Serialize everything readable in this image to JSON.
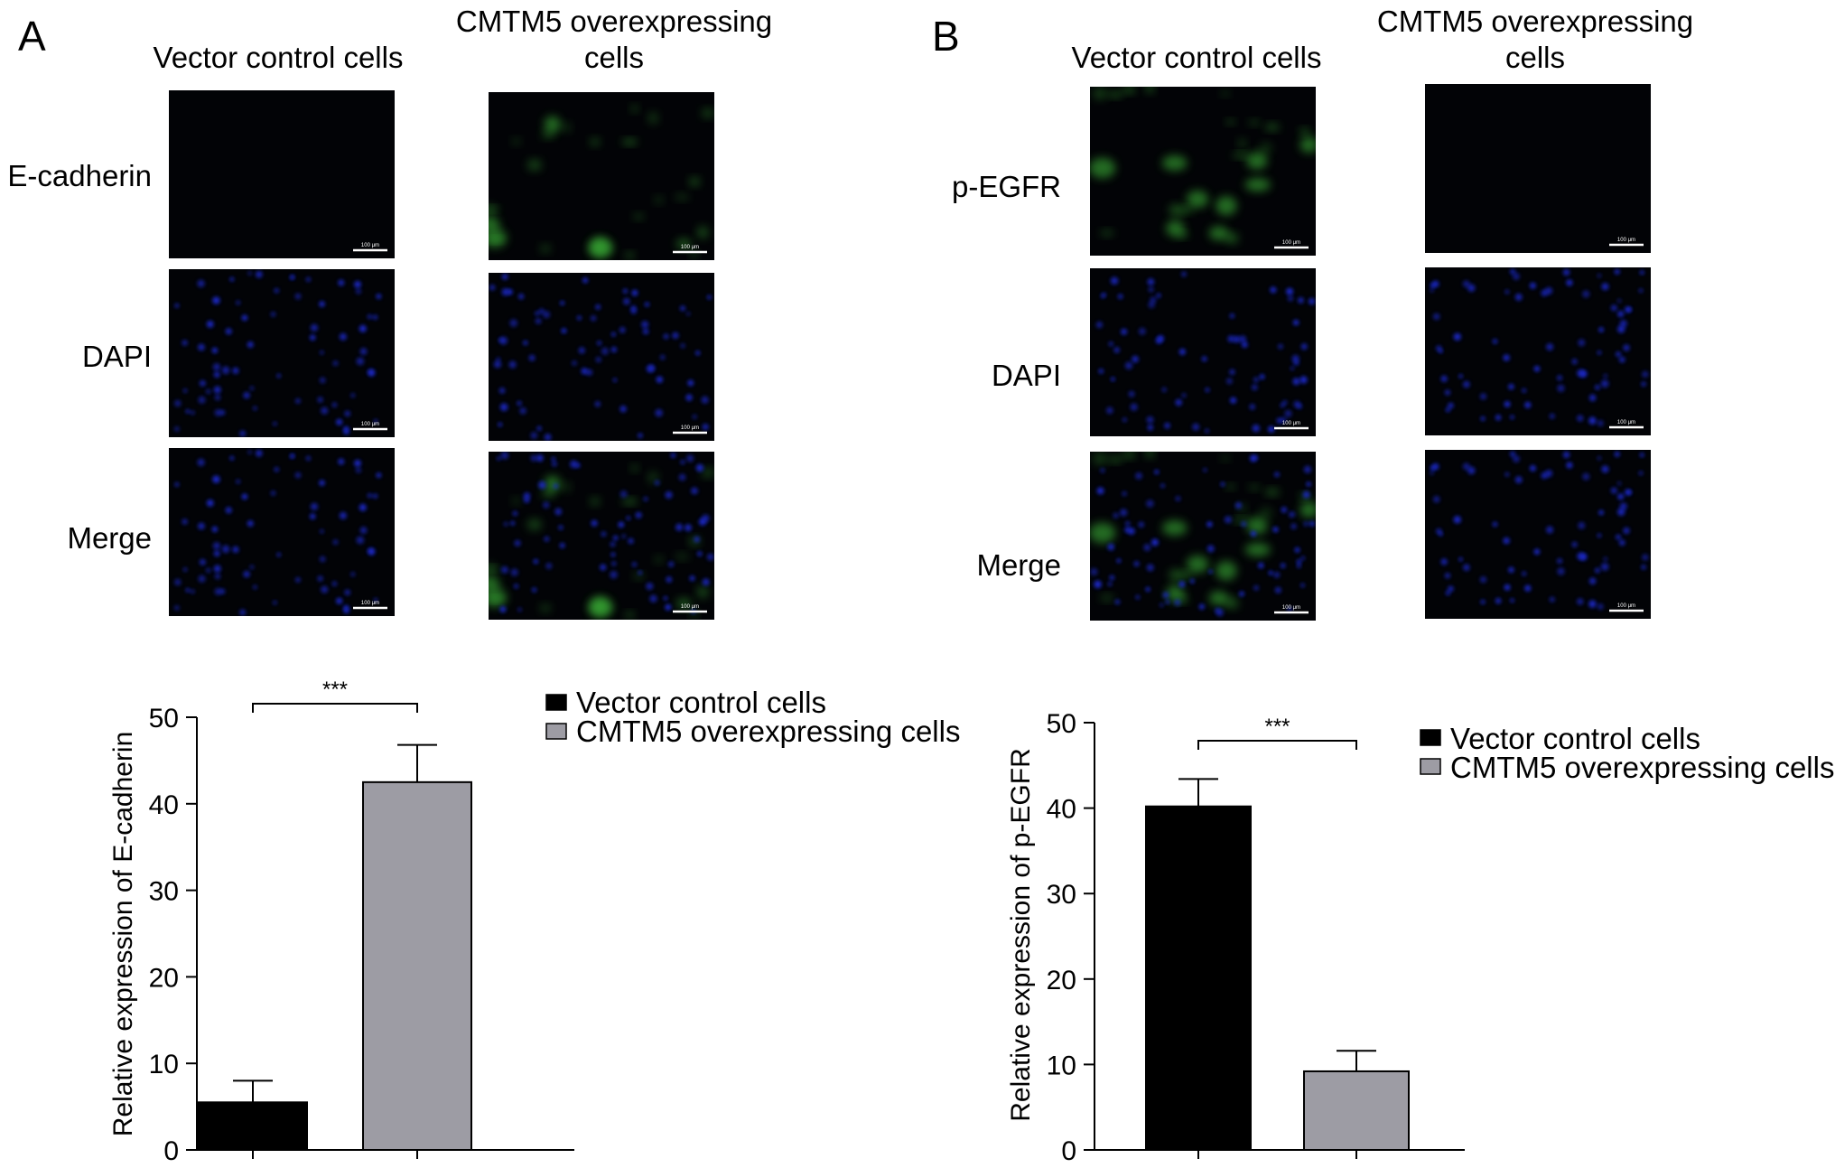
{
  "panels": [
    {
      "letter": "A",
      "column_titles": [
        [
          "Vector control cells"
        ],
        [
          "CMTM5 overexpressing",
          "cells"
        ]
      ],
      "row_labels": [
        "E-cadherin",
        "DAPI",
        "Merge"
      ],
      "scale_bar_text": "100 μm"
    },
    {
      "letter": "B",
      "column_titles": [
        [
          "Vector control cells"
        ],
        [
          "CMTM5 overexpressing",
          "cells"
        ]
      ],
      "row_labels": [
        "p-EGFR",
        "DAPI",
        "Merge"
      ],
      "scale_bar_text": "100 μm"
    }
  ],
  "colors": {
    "vector": "#000000",
    "cmtm5": "#9d9ca4",
    "dapi": "#1c2bd0",
    "signal": "#3fbf3a",
    "panel_bg": "#020306"
  },
  "chart_data": [
    {
      "type": "bar",
      "panel": "A",
      "categories": [
        "Vector control cells",
        "CMTM5 overexpressing cells"
      ],
      "values": [
        5.5,
        42.5
      ],
      "errors": [
        2.5,
        4.3
      ],
      "ylabel": "Relative expression of E-cadherin",
      "ylim": [
        0,
        50
      ],
      "yticks": [
        0,
        10,
        20,
        30,
        40,
        50
      ],
      "significance": "***",
      "legend": [
        "Vector control cells",
        "CMTM5 overexpressing cells"
      ],
      "legend_position": "top-right",
      "grid": false
    },
    {
      "type": "bar",
      "panel": "B",
      "categories": [
        "Vector control cells",
        "CMTM5 overexpressing cells"
      ],
      "values": [
        40.2,
        9.2
      ],
      "errors": [
        3.2,
        2.4
      ],
      "ylabel": "Relative expression of p-EGFR",
      "ylim": [
        0,
        50
      ],
      "yticks": [
        0,
        10,
        20,
        30,
        40,
        50
      ],
      "significance": "***",
      "legend": [
        "Vector control cells",
        "CMTM5 overexpressing cells"
      ],
      "legend_position": "top-right",
      "grid": false
    }
  ]
}
